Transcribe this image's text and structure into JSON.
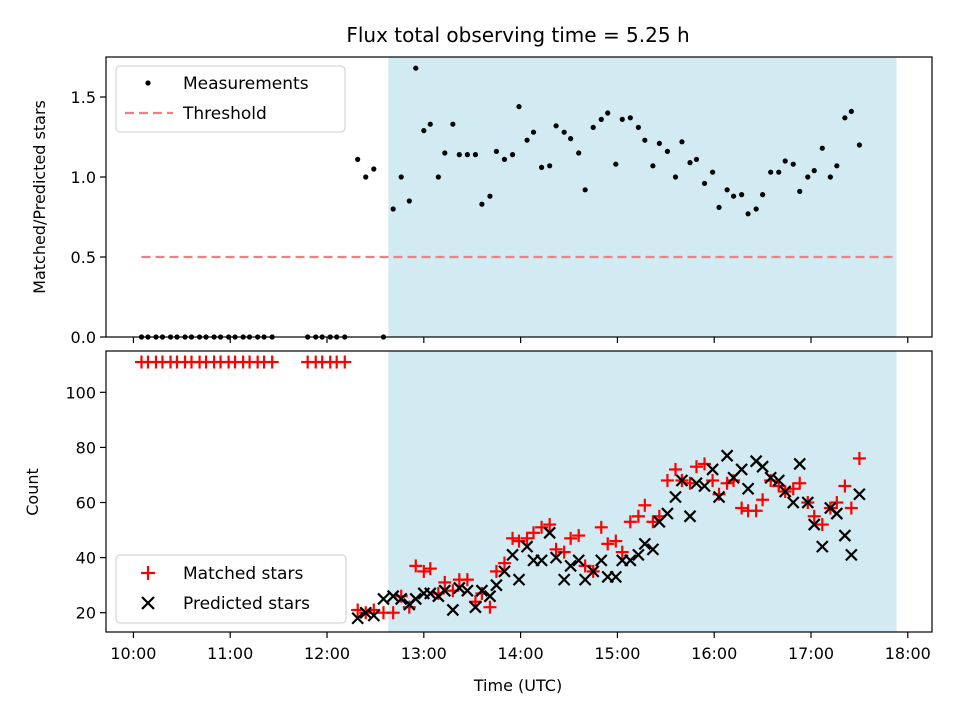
{
  "figure": {
    "title": "Flux total observing time = 5.25 h",
    "xlabel": "Time (UTC)"
  },
  "colors": {
    "measurement": "#000000",
    "threshold": "#f08080",
    "matched": "#ff0000",
    "predicted": "#000000",
    "observing_span": "#add8e6"
  },
  "chart_data": [
    {
      "type": "scatter",
      "panel": "top",
      "ylabel": "Matched/Predicted stars",
      "xlim": [
        "09:43",
        "18:15"
      ],
      "ylim": [
        0,
        1.75
      ],
      "yticks": [
        0.0,
        0.5,
        1.0,
        1.5
      ],
      "ytick_labels": [
        "0.0",
        "0.5",
        "1.0",
        "1.5"
      ],
      "shaded_span": [
        "12:38",
        "17:53"
      ],
      "threshold": {
        "value": 0.5,
        "from": "10:05",
        "to": "17:53"
      },
      "legend": {
        "position": "top-left",
        "entries": [
          "Measurements",
          "Threshold"
        ]
      },
      "series": [
        {
          "name": "Measurements",
          "marker": "dot",
          "points": [
            [
              "10:05",
              0
            ],
            [
              "10:09",
              0
            ],
            [
              "10:14",
              0
            ],
            [
              "10:18",
              0
            ],
            [
              "10:23",
              0
            ],
            [
              "10:27",
              0
            ],
            [
              "10:32",
              0
            ],
            [
              "10:36",
              0
            ],
            [
              "10:41",
              0
            ],
            [
              "10:45",
              0
            ],
            [
              "10:50",
              0
            ],
            [
              "10:54",
              0
            ],
            [
              "10:59",
              0
            ],
            [
              "11:03",
              0
            ],
            [
              "11:08",
              0
            ],
            [
              "11:12",
              0
            ],
            [
              "11:17",
              0
            ],
            [
              "11:21",
              0
            ],
            [
              "11:26",
              0
            ],
            [
              "11:48",
              0
            ],
            [
              "11:53",
              0
            ],
            [
              "11:57",
              0
            ],
            [
              "12:02",
              0
            ],
            [
              "12:06",
              0
            ],
            [
              "12:11",
              0
            ],
            [
              "12:35",
              0
            ],
            [
              "12:19",
              1.11
            ],
            [
              "12:24",
              1.0
            ],
            [
              "12:29",
              1.05
            ],
            [
              "12:41",
              0.8
            ],
            [
              "12:46",
              1.0
            ],
            [
              "12:51",
              0.85
            ],
            [
              "12:55",
              1.68
            ],
            [
              "13:00",
              1.29
            ],
            [
              "13:04",
              1.33
            ],
            [
              "13:09",
              1.0
            ],
            [
              "13:13",
              1.15
            ],
            [
              "13:18",
              1.33
            ],
            [
              "13:22",
              1.14
            ],
            [
              "13:27",
              1.14
            ],
            [
              "13:32",
              1.14
            ],
            [
              "13:36",
              0.83
            ],
            [
              "13:41",
              0.88
            ],
            [
              "13:45",
              1.16
            ],
            [
              "13:50",
              1.11
            ],
            [
              "13:55",
              1.14
            ],
            [
              "13:59",
              1.44
            ],
            [
              "14:04",
              1.23
            ],
            [
              "14:08",
              1.28
            ],
            [
              "14:13",
              1.06
            ],
            [
              "14:18",
              1.07
            ],
            [
              "14:22",
              1.32
            ],
            [
              "14:27",
              1.28
            ],
            [
              "14:31",
              1.24
            ],
            [
              "14:36",
              1.15
            ],
            [
              "14:40",
              0.92
            ],
            [
              "14:45",
              1.31
            ],
            [
              "14:50",
              1.36
            ],
            [
              "14:54",
              1.4
            ],
            [
              "14:59",
              1.08
            ],
            [
              "15:03",
              1.36
            ],
            [
              "15:08",
              1.37
            ],
            [
              "15:13",
              1.31
            ],
            [
              "15:17",
              1.23
            ],
            [
              "15:22",
              1.07
            ],
            [
              "15:26",
              1.21
            ],
            [
              "15:31",
              1.16
            ],
            [
              "15:36",
              1.0
            ],
            [
              "15:40",
              1.22
            ],
            [
              "15:45",
              1.09
            ],
            [
              "15:49",
              1.11
            ],
            [
              "15:54",
              0.96
            ],
            [
              "15:59",
              1.03
            ],
            [
              "16:03",
              0.81
            ],
            [
              "16:08",
              0.92
            ],
            [
              "16:12",
              0.88
            ],
            [
              "16:17",
              0.89
            ],
            [
              "16:21",
              0.77
            ],
            [
              "16:26",
              0.8
            ],
            [
              "16:30",
              0.89
            ],
            [
              "16:35",
              1.03
            ],
            [
              "16:40",
              1.03
            ],
            [
              "16:44",
              1.1
            ],
            [
              "16:49",
              1.08
            ],
            [
              "16:53",
              0.91
            ],
            [
              "16:58",
              1.0
            ],
            [
              "17:02",
              1.04
            ],
            [
              "17:07",
              1.18
            ],
            [
              "17:12",
              1.0
            ],
            [
              "17:16",
              1.07
            ],
            [
              "17:21",
              1.37
            ],
            [
              "17:25",
              1.41
            ],
            [
              "17:30",
              1.2
            ]
          ]
        }
      ]
    },
    {
      "type": "scatter",
      "panel": "bottom",
      "ylabel": "Count",
      "xlim": [
        "09:43",
        "18:15"
      ],
      "ylim": [
        13,
        115
      ],
      "yticks": [
        20,
        40,
        60,
        80,
        100
      ],
      "xticks": [
        "10:00",
        "11:00",
        "12:00",
        "13:00",
        "14:00",
        "15:00",
        "16:00",
        "17:00",
        "18:00"
      ],
      "shaded_span": [
        "12:38",
        "17:53"
      ],
      "legend": {
        "position": "bottom-left",
        "entries": [
          "Matched stars",
          "Predicted stars"
        ]
      },
      "series": [
        {
          "name": "Matched stars",
          "marker": "plus",
          "points": [
            [
              "10:05",
              111
            ],
            [
              "10:09",
              111
            ],
            [
              "10:14",
              111
            ],
            [
              "10:18",
              111
            ],
            [
              "10:23",
              111
            ],
            [
              "10:27",
              111
            ],
            [
              "10:32",
              111
            ],
            [
              "10:36",
              111
            ],
            [
              "10:41",
              111
            ],
            [
              "10:45",
              111
            ],
            [
              "10:50",
              111
            ],
            [
              "10:54",
              111
            ],
            [
              "10:59",
              111
            ],
            [
              "11:03",
              111
            ],
            [
              "11:08",
              111
            ],
            [
              "11:12",
              111
            ],
            [
              "11:17",
              111
            ],
            [
              "11:21",
              111
            ],
            [
              "11:26",
              111
            ],
            [
              "11:48",
              111
            ],
            [
              "11:53",
              111
            ],
            [
              "11:57",
              111
            ],
            [
              "12:02",
              111
            ],
            [
              "12:06",
              111
            ],
            [
              "12:11",
              111
            ],
            [
              "12:19",
              21
            ],
            [
              "12:24",
              20
            ],
            [
              "12:29",
              21
            ],
            [
              "12:35",
              20
            ],
            [
              "12:41",
              20
            ],
            [
              "12:46",
              26
            ],
            [
              "12:51",
              22
            ],
            [
              "12:55",
              37
            ],
            [
              "13:00",
              35
            ],
            [
              "13:04",
              36
            ],
            [
              "13:09",
              27
            ],
            [
              "13:13",
              31
            ],
            [
              "13:18",
              28
            ],
            [
              "13:22",
              32
            ],
            [
              "13:27",
              32
            ],
            [
              "13:32",
              24
            ],
            [
              "13:36",
              27
            ],
            [
              "13:41",
              22
            ],
            [
              "13:45",
              35
            ],
            [
              "13:50",
              38
            ],
            [
              "13:55",
              47
            ],
            [
              "13:59",
              46
            ],
            [
              "14:04",
              47
            ],
            [
              "14:08",
              49
            ],
            [
              "14:13",
              51
            ],
            [
              "14:18",
              52
            ],
            [
              "14:22",
              43
            ],
            [
              "14:27",
              42
            ],
            [
              "14:31",
              47
            ],
            [
              "14:36",
              48
            ],
            [
              "14:40",
              37
            ],
            [
              "14:45",
              35
            ],
            [
              "14:50",
              51
            ],
            [
              "14:54",
              45
            ],
            [
              "14:59",
              46
            ],
            [
              "15:03",
              42
            ],
            [
              "15:08",
              53
            ],
            [
              "15:13",
              55
            ],
            [
              "15:17",
              59
            ],
            [
              "15:22",
              53
            ],
            [
              "15:26",
              55
            ],
            [
              "15:31",
              68
            ],
            [
              "15:36",
              72
            ],
            [
              "15:40",
              68
            ],
            [
              "15:45",
              67
            ],
            [
              "15:49",
              73
            ],
            [
              "15:54",
              74
            ],
            [
              "15:59",
              68
            ],
            [
              "16:03",
              63
            ],
            [
              "16:08",
              67
            ],
            [
              "16:12",
              68
            ],
            [
              "16:17",
              58
            ],
            [
              "16:21",
              57
            ],
            [
              "16:26",
              57
            ],
            [
              "16:30",
              61
            ],
            [
              "16:35",
              68
            ],
            [
              "16:40",
              66
            ],
            [
              "16:44",
              64
            ],
            [
              "16:49",
              65
            ],
            [
              "16:53",
              67
            ],
            [
              "16:58",
              60
            ],
            [
              "17:02",
              55
            ],
            [
              "17:07",
              52
            ],
            [
              "17:12",
              58
            ],
            [
              "17:16",
              60
            ],
            [
              "17:21",
              66
            ],
            [
              "17:25",
              58
            ],
            [
              "17:30",
              76
            ]
          ]
        },
        {
          "name": "Predicted stars",
          "marker": "x",
          "points": [
            [
              "12:19",
              18
            ],
            [
              "12:24",
              20
            ],
            [
              "12:29",
              19
            ],
            [
              "12:35",
              25
            ],
            [
              "12:41",
              26
            ],
            [
              "12:46",
              25
            ],
            [
              "12:51",
              23
            ],
            [
              "12:55",
              25
            ],
            [
              "13:00",
              27
            ],
            [
              "13:04",
              27
            ],
            [
              "13:09",
              26
            ],
            [
              "13:13",
              28
            ],
            [
              "13:18",
              21
            ],
            [
              "13:22",
              29
            ],
            [
              "13:27",
              28
            ],
            [
              "13:32",
              22
            ],
            [
              "13:36",
              28
            ],
            [
              "13:41",
              26
            ],
            [
              "13:45",
              30
            ],
            [
              "13:50",
              35
            ],
            [
              "13:55",
              41
            ],
            [
              "13:59",
              32
            ],
            [
              "14:04",
              44
            ],
            [
              "14:08",
              39
            ],
            [
              "14:13",
              39
            ],
            [
              "14:18",
              49
            ],
            [
              "14:22",
              40
            ],
            [
              "14:27",
              32
            ],
            [
              "14:31",
              37
            ],
            [
              "14:36",
              39
            ],
            [
              "14:40",
              32
            ],
            [
              "14:45",
              35
            ],
            [
              "14:50",
              39
            ],
            [
              "14:54",
              33
            ],
            [
              "14:59",
              33
            ],
            [
              "15:03",
              39
            ],
            [
              "15:08",
              39
            ],
            [
              "15:13",
              41
            ],
            [
              "15:17",
              45
            ],
            [
              "15:22",
              43
            ],
            [
              "15:26",
              53
            ],
            [
              "15:31",
              56
            ],
            [
              "15:36",
              62
            ],
            [
              "15:40",
              68
            ],
            [
              "15:45",
              55
            ],
            [
              "15:49",
              67
            ],
            [
              "15:54",
              66
            ],
            [
              "15:59",
              72
            ],
            [
              "16:03",
              62
            ],
            [
              "16:08",
              77
            ],
            [
              "16:12",
              69
            ],
            [
              "16:17",
              72
            ],
            [
              "16:21",
              65
            ],
            [
              "16:26",
              75
            ],
            [
              "16:30",
              73
            ],
            [
              "16:35",
              69
            ],
            [
              "16:40",
              68
            ],
            [
              "16:44",
              64
            ],
            [
              "16:49",
              60
            ],
            [
              "16:53",
              74
            ],
            [
              "16:58",
              60
            ],
            [
              "17:02",
              52
            ],
            [
              "17:07",
              44
            ],
            [
              "17:12",
              58
            ],
            [
              "17:16",
              56
            ],
            [
              "17:21",
              48
            ],
            [
              "17:25",
              41
            ],
            [
              "17:30",
              63
            ]
          ]
        }
      ]
    }
  ]
}
